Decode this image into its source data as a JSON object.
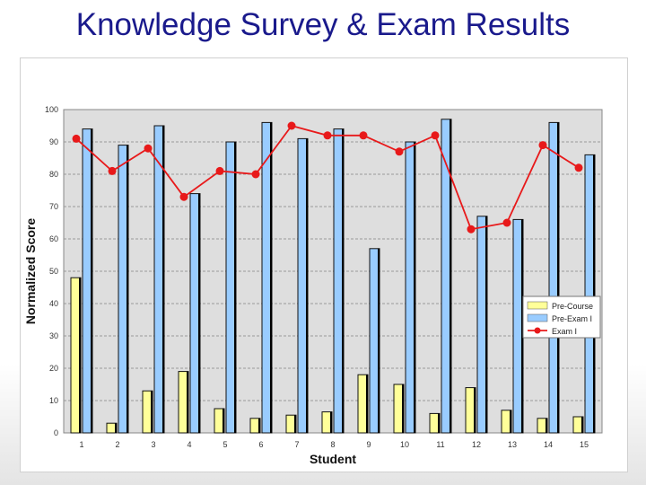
{
  "slide": {
    "title": "Knowledge Survey & Exam Results"
  },
  "colors": {
    "title": "#1a1a8c",
    "pre_course": "#ffff99",
    "pre_exam": "#99ccff",
    "exam": "#e8191a",
    "plot_bg": "#dedede"
  },
  "chart_data": {
    "type": "bar",
    "xlabel": "Student",
    "ylabel": "Normalized Score",
    "ylim": [
      0,
      100
    ],
    "yticks": [
      0,
      10,
      20,
      30,
      40,
      50,
      60,
      70,
      80,
      90,
      100
    ],
    "grid": true,
    "legend_position": "right",
    "categories": [
      "1",
      "2",
      "3",
      "4",
      "5",
      "6",
      "7",
      "8",
      "9",
      "10",
      "11",
      "12",
      "13",
      "14",
      "15"
    ],
    "series": [
      {
        "name": "Pre-Course",
        "type": "bar",
        "color": "#ffff99",
        "values": [
          48,
          3,
          13,
          19,
          7.5,
          4.5,
          5.5,
          6.5,
          18,
          15,
          6,
          14,
          7,
          4.5,
          5
        ]
      },
      {
        "name": "Pre-Exam I",
        "type": "bar",
        "color": "#99ccff",
        "values": [
          94,
          89,
          95,
          74,
          90,
          96,
          91,
          94,
          57,
          90,
          97,
          67,
          66,
          96,
          86
        ]
      },
      {
        "name": "Exam I",
        "type": "line",
        "color": "#e8191a",
        "values": [
          91,
          81,
          88,
          73,
          81,
          80,
          95,
          92,
          92,
          87,
          92,
          63,
          65,
          89,
          82
        ]
      }
    ]
  }
}
